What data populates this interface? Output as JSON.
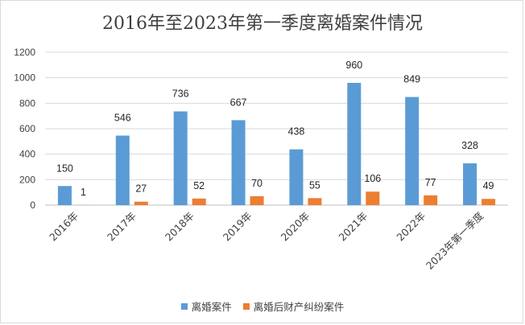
{
  "chart_data": {
    "type": "bar",
    "title": "2016年至2023年第一季度离婚案件情况",
    "categories": [
      "2016年",
      "2017年",
      "2018年",
      "2019年",
      "2020年",
      "2021年",
      "2022年",
      "2023年第一季度"
    ],
    "series": [
      {
        "name": "离婚案件",
        "color": "#5B9BD5",
        "values": [
          150,
          546,
          736,
          667,
          438,
          960,
          849,
          328
        ]
      },
      {
        "name": "离婚后财产纠纷案件",
        "color": "#ED7D31",
        "values": [
          1,
          27,
          52,
          70,
          55,
          106,
          77,
          49
        ]
      }
    ],
    "ylim": [
      0,
      1200
    ],
    "yticks": [
      0,
      200,
      400,
      600,
      800,
      1000,
      1200
    ],
    "grid": true,
    "legend": "bottom"
  }
}
